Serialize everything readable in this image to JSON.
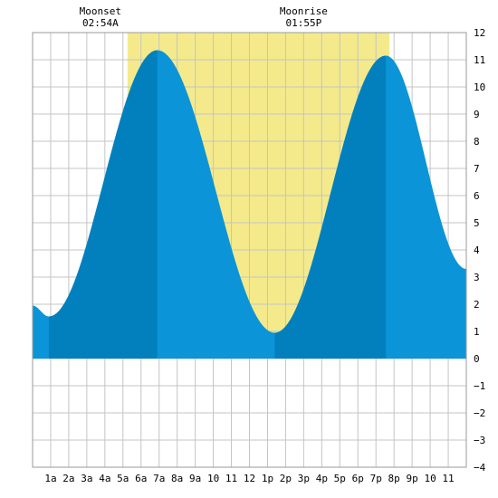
{
  "chart_data": {
    "type": "area",
    "title": "",
    "xlabel": "",
    "ylabel": "",
    "xlim": [
      0,
      24
    ],
    "ylim": [
      -4,
      12
    ],
    "grid": true,
    "x_tick_labels": [
      {
        "x": 1,
        "label": "1a"
      },
      {
        "x": 2,
        "label": "2a"
      },
      {
        "x": 3,
        "label": "3a"
      },
      {
        "x": 4,
        "label": "4a"
      },
      {
        "x": 5,
        "label": "5a"
      },
      {
        "x": 6,
        "label": "6a"
      },
      {
        "x": 7,
        "label": "7a"
      },
      {
        "x": 8,
        "label": "8a"
      },
      {
        "x": 9,
        "label": "9a"
      },
      {
        "x": 10,
        "label": "10"
      },
      {
        "x": 11,
        "label": "11"
      },
      {
        "x": 12,
        "label": "12"
      },
      {
        "x": 13,
        "label": "1p"
      },
      {
        "x": 14,
        "label": "2p"
      },
      {
        "x": 15,
        "label": "3p"
      },
      {
        "x": 16,
        "label": "4p"
      },
      {
        "x": 17,
        "label": "5p"
      },
      {
        "x": 18,
        "label": "6p"
      },
      {
        "x": 19,
        "label": "7p"
      },
      {
        "x": 20,
        "label": "8p"
      },
      {
        "x": 21,
        "label": "9p"
      },
      {
        "x": 22,
        "label": "10"
      },
      {
        "x": 23,
        "label": "11"
      }
    ],
    "y_ticks": [
      -4,
      -3,
      -2,
      -1,
      0,
      1,
      2,
      3,
      4,
      5,
      6,
      7,
      8,
      9,
      10,
      11,
      12
    ],
    "moon_window": {
      "start": 5.25,
      "end": 19.75
    },
    "annotations": [
      {
        "name": "moonset",
        "label": "Moonset",
        "time": "02:54A",
        "x": 3.75
      },
      {
        "name": "moonrise",
        "label": "Moonrise",
        "time": "01:55P",
        "x": 15
      }
    ],
    "series": [
      {
        "x": [
          0,
          0.9,
          6.9,
          13.4,
          19.55,
          24
        ],
        "values": [
          1.95,
          1.55,
          11.35,
          0.95,
          11.15,
          3.3
        ]
      }
    ],
    "rising_bands": [
      {
        "start": 0.9,
        "end": 6.9
      },
      {
        "start": 13.4,
        "end": 19.55
      }
    ],
    "colors": {
      "moon_window": "#f4ea8c",
      "tide_fill": "#0b95d8",
      "tide_rising": "#0280bd",
      "grid": "#c4c4c4",
      "background": "#ffffff"
    }
  }
}
